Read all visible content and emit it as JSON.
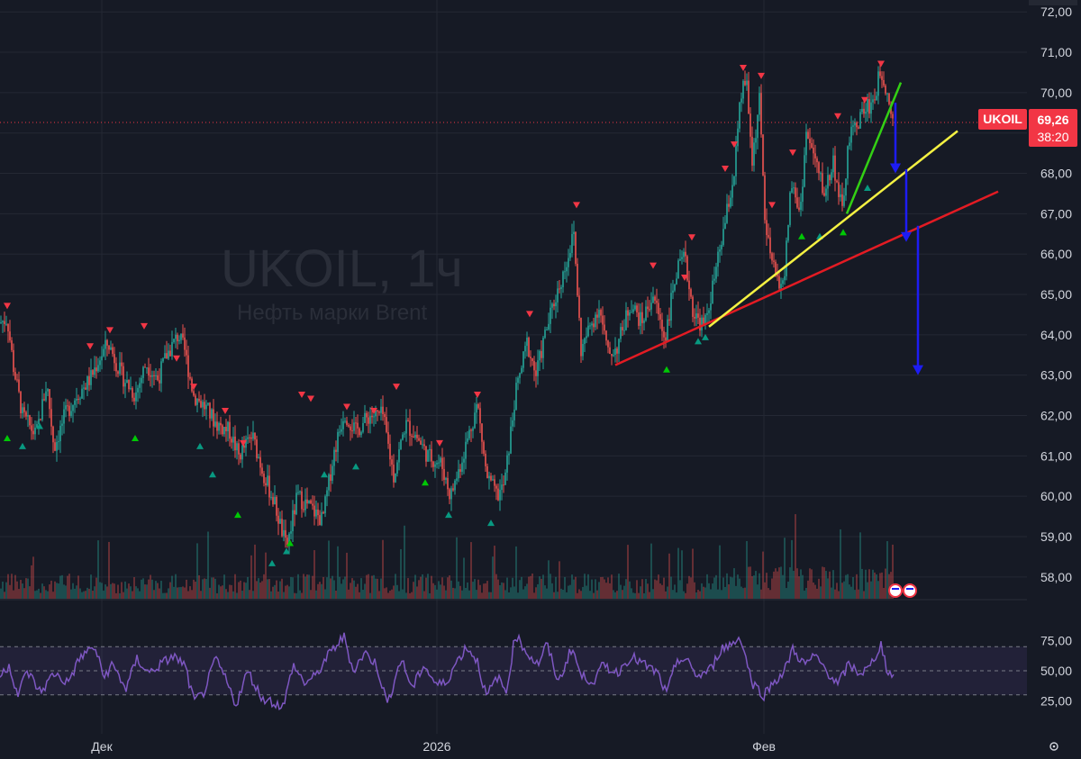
{
  "symbol": "UKOIL, 1ч",
  "description": "Нефть марки Brent",
  "price_tag": {
    "symbol": "UKOIL",
    "price": "69,26",
    "countdown": "38:20",
    "value": 69.26
  },
  "chart_data": [
    {
      "type": "candlestick",
      "title": "UKOIL, 1ч",
      "subtitle": "Нефть марки Brent",
      "ylim": [
        57.5,
        72.0
      ],
      "y_ticks": [
        "58,00",
        "59,00",
        "60,00",
        "61,00",
        "62,00",
        "63,00",
        "64,00",
        "65,00",
        "66,00",
        "67,00",
        "68,00",
        "69,00",
        "70,00",
        "71,00",
        "72,00"
      ],
      "y_tick_values": [
        58,
        59,
        60,
        61,
        62,
        63,
        64,
        65,
        66,
        67,
        68,
        69,
        70,
        71,
        72
      ],
      "x_ticks": [
        "Дек",
        "2026",
        "Фев"
      ],
      "x_ticks_index": [
        113,
        485,
        848
      ],
      "last_price": 69.26,
      "price_path": [
        [
          0,
          64.3
        ],
        [
          8,
          64.4
        ],
        [
          15,
          63.2
        ],
        [
          25,
          62.0
        ],
        [
          40,
          61.5
        ],
        [
          52,
          62.8
        ],
        [
          60,
          61.2
        ],
        [
          72,
          62.0
        ],
        [
          85,
          62.5
        ],
        [
          100,
          62.9
        ],
        [
          110,
          63.4
        ],
        [
          120,
          63.8
        ],
        [
          135,
          63.0
        ],
        [
          150,
          62.5
        ],
        [
          162,
          63.3
        ],
        [
          175,
          62.9
        ],
        [
          185,
          63.5
        ],
        [
          198,
          64.0
        ],
        [
          205,
          63.6
        ],
        [
          215,
          62.5
        ],
        [
          228,
          62.2
        ],
        [
          240,
          61.8
        ],
        [
          255,
          61.6
        ],
        [
          265,
          61.0
        ],
        [
          280,
          61.5
        ],
        [
          292,
          60.6
        ],
        [
          305,
          59.8
        ],
        [
          318,
          58.7
        ],
        [
          330,
          60.0
        ],
        [
          345,
          59.7
        ],
        [
          358,
          59.4
        ],
        [
          370,
          61.0
        ],
        [
          382,
          62.1
        ],
        [
          395,
          61.6
        ],
        [
          410,
          62.0
        ],
        [
          425,
          62.0
        ],
        [
          437,
          60.5
        ],
        [
          450,
          61.8
        ],
        [
          462,
          61.5
        ],
        [
          475,
          61.0
        ],
        [
          490,
          60.8
        ],
        [
          500,
          60.0
        ],
        [
          510,
          60.7
        ],
        [
          520,
          61.5
        ],
        [
          530,
          62.3
        ],
        [
          540,
          60.5
        ],
        [
          552,
          60.0
        ],
        [
          560,
          60.3
        ],
        [
          572,
          62.5
        ],
        [
          585,
          63.8
        ],
        [
          595,
          63.0
        ],
        [
          605,
          64.0
        ],
        [
          615,
          64.8
        ],
        [
          625,
          65.5
        ],
        [
          637,
          66.5
        ],
        [
          645,
          63.6
        ],
        [
          655,
          64.2
        ],
        [
          665,
          64.7
        ],
        [
          675,
          63.5
        ],
        [
          685,
          63.7
        ],
        [
          700,
          64.8
        ],
        [
          712,
          64.3
        ],
        [
          725,
          65.0
        ],
        [
          738,
          63.9
        ],
        [
          750,
          65.5
        ],
        [
          760,
          65.9
        ],
        [
          770,
          64.5
        ],
        [
          782,
          64.2
        ],
        [
          795,
          65.6
        ],
        [
          805,
          66.8
        ],
        [
          815,
          68.0
        ],
        [
          822,
          69.8
        ],
        [
          828,
          70.4
        ],
        [
          835,
          68.3
        ],
        [
          843,
          69.8
        ],
        [
          850,
          66.5
        ],
        [
          860,
          65.5
        ],
        [
          870,
          65.2
        ],
        [
          878,
          67.8
        ],
        [
          888,
          67.0
        ],
        [
          895,
          69.0
        ],
        [
          905,
          68.3
        ],
        [
          915,
          67.5
        ],
        [
          925,
          68.3
        ],
        [
          935,
          67.0
        ],
        [
          942,
          68.8
        ],
        [
          950,
          69.2
        ],
        [
          960,
          69.6
        ],
        [
          970,
          69.8
        ],
        [
          978,
          70.6
        ],
        [
          985,
          70.0
        ],
        [
          992,
          69.3
        ]
      ],
      "buy_signal_prices": [
        61.7,
        61.5,
        62.0,
        61.7,
        61.5,
        60.8,
        59.8,
        58.6,
        58.9,
        59.1,
        60.8,
        61.0,
        60.6,
        59.8,
        59.6,
        63.4,
        64.1,
        64.2,
        66.7,
        66.7,
        67.9,
        66.8
      ],
      "sell_signal_prices": [
        64.5,
        63.5,
        63.9,
        64.0,
        63.2,
        62.5,
        61.9,
        61.1,
        62.3,
        62.2,
        62.0,
        61.9,
        62.5,
        61.1,
        62.3,
        64.3,
        67.0,
        65.5,
        65.2,
        66.2,
        67.9,
        68.5,
        70.4,
        70.2,
        67.0,
        68.3,
        69.2,
        69.6,
        70.5
      ],
      "trendlines": [
        {
          "color": "#e31b23",
          "from": [
            683,
            63.25
          ],
          "to": [
            1108,
            67.55
          ]
        },
        {
          "color": "#f4f142",
          "from": [
            787,
            64.2
          ],
          "to": [
            1063,
            69.05
          ]
        },
        {
          "color": "#33d014",
          "from": [
            940,
            67.0
          ],
          "to": [
            1000,
            70.25
          ]
        }
      ],
      "arrows": [
        {
          "color": "#1d1cf3",
          "x": 994,
          "from_y": 69.75,
          "to_y": 68.0
        },
        {
          "color": "#1d1cf3",
          "x": 1006,
          "from_y": 68.1,
          "to_y": 66.3
        },
        {
          "color": "#1d1cf3",
          "x": 1019,
          "from_y": 66.7,
          "to_y": 63.0
        }
      ],
      "colors": {
        "up": "#26a69a",
        "down": "#ef5350",
        "buy": "#089981",
        "buy_bright": "#00c805",
        "sell": "#f23645",
        "background": "#161a25",
        "grid": "#242834"
      }
    },
    {
      "type": "line",
      "name": "RSI",
      "ylim": [
        15,
        85
      ],
      "y_ticks": [
        "25,00",
        "50,00",
        "75,00"
      ],
      "y_tick_values": [
        25,
        50,
        75
      ],
      "band": [
        30,
        70
      ],
      "color": "#7e57c2",
      "rsi_path": [
        [
          0,
          45
        ],
        [
          10,
          55
        ],
        [
          20,
          30
        ],
        [
          30,
          50
        ],
        [
          45,
          32
        ],
        [
          60,
          48
        ],
        [
          75,
          40
        ],
        [
          90,
          62
        ],
        [
          105,
          70
        ],
        [
          115,
          45
        ],
        [
          125,
          55
        ],
        [
          140,
          35
        ],
        [
          152,
          60
        ],
        [
          165,
          48
        ],
        [
          178,
          55
        ],
        [
          192,
          62
        ],
        [
          205,
          55
        ],
        [
          215,
          25
        ],
        [
          225,
          30
        ],
        [
          240,
          60
        ],
        [
          252,
          40
        ],
        [
          262,
          22
        ],
        [
          275,
          50
        ],
        [
          290,
          28
        ],
        [
          300,
          25
        ],
        [
          315,
          20
        ],
        [
          325,
          55
        ],
        [
          338,
          40
        ],
        [
          350,
          45
        ],
        [
          362,
          60
        ],
        [
          372,
          70
        ],
        [
          382,
          78
        ],
        [
          392,
          50
        ],
        [
          405,
          65
        ],
        [
          418,
          55
        ],
        [
          430,
          22
        ],
        [
          445,
          60
        ],
        [
          458,
          35
        ],
        [
          470,
          55
        ],
        [
          485,
          38
        ],
        [
          495,
          40
        ],
        [
          505,
          55
        ],
        [
          518,
          70
        ],
        [
          530,
          58
        ],
        [
          540,
          28
        ],
        [
          552,
          45
        ],
        [
          562,
          32
        ],
        [
          572,
          80
        ],
        [
          585,
          65
        ],
        [
          597,
          55
        ],
        [
          607,
          72
        ],
        [
          620,
          40
        ],
        [
          635,
          70
        ],
        [
          645,
          45
        ],
        [
          660,
          42
        ],
        [
          670,
          55
        ],
        [
          685,
          48
        ],
        [
          700,
          62
        ],
        [
          715,
          55
        ],
        [
          730,
          48
        ],
        [
          740,
          30
        ],
        [
          752,
          60
        ],
        [
          762,
          58
        ],
        [
          775,
          45
        ],
        [
          790,
          52
        ],
        [
          800,
          68
        ],
        [
          812,
          72
        ],
        [
          822,
          78
        ],
        [
          835,
          40
        ],
        [
          848,
          30
        ],
        [
          860,
          42
        ],
        [
          870,
          48
        ],
        [
          880,
          68
        ],
        [
          893,
          55
        ],
        [
          905,
          62
        ],
        [
          918,
          50
        ],
        [
          930,
          38
        ],
        [
          942,
          55
        ],
        [
          955,
          48
        ],
        [
          965,
          52
        ],
        [
          978,
          72
        ],
        [
          985,
          50
        ],
        [
          992,
          45
        ]
      ]
    }
  ]
}
